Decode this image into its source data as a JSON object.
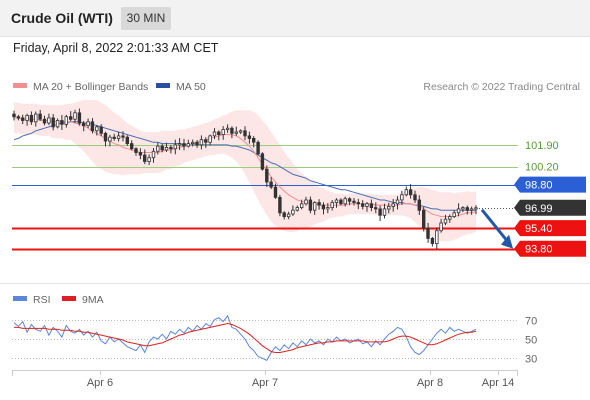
{
  "header": {
    "title": "Crude Oil (WTI)",
    "timeframe": "30 MIN"
  },
  "datetime": "Friday, April 8, 2022 2:01:33 AM CET",
  "legend": {
    "bollinger": "MA 20 + Bollinger Bands",
    "ma50": "MA 50",
    "copyright": "Research © 2022 Trading Central",
    "rsi": "RSI",
    "ma9": "9MA"
  },
  "colors": {
    "candle": "#333333",
    "bollinger_band": "#fde3e3",
    "ma20": "#f19090",
    "ma50": "#4a6cb3",
    "resistance": "#9ccc7c",
    "pivot": "#2a5fd6",
    "support": "#ee1111",
    "current_price": "#333333",
    "arrow": "#2357a8",
    "rsi": "#5b86d9",
    "rsi_ma": "#e02020"
  },
  "chart_data": [
    {
      "type": "candlestick",
      "title": "Crude Oil (WTI)",
      "timeframe": "30 MIN",
      "x_labels": [
        "Apr 6",
        "Apr 7",
        "Apr 8",
        "Apr 14"
      ],
      "y_range": [
        91.9,
        105.4
      ],
      "levels": [
        {
          "name": "resistance-2",
          "value": 101.9,
          "label": "101.90",
          "kind": "resistance"
        },
        {
          "name": "resistance-1",
          "value": 100.2,
          "label": "100.20",
          "kind": "resistance"
        },
        {
          "name": "pivot",
          "value": 98.8,
          "label": "98.80",
          "kind": "pivot"
        },
        {
          "name": "current",
          "value": 96.99,
          "label": "96.99",
          "kind": "current"
        },
        {
          "name": "support-1",
          "value": 95.4,
          "label": "95.40",
          "kind": "support"
        },
        {
          "name": "support-2",
          "value": 93.8,
          "label": "93.80",
          "kind": "support"
        }
      ],
      "forecast": {
        "from": 96.99,
        "to": 93.8,
        "direction": "down"
      },
      "close": [
        104.1,
        104.0,
        103.8,
        104.2,
        103.7,
        104.3,
        103.9,
        103.6,
        104.0,
        103.3,
        103.8,
        103.5,
        104.1,
        103.9,
        104.4,
        103.6,
        103.4,
        103.7,
        103.0,
        103.3,
        102.8,
        102.2,
        102.5,
        102.4,
        102.6,
        102.5,
        102.0,
        101.6,
        101.3,
        101.1,
        100.6,
        100.9,
        101.4,
        101.8,
        101.5,
        101.7,
        101.6,
        101.9,
        102.0,
        101.8,
        102.0,
        102.1,
        101.9,
        102.3,
        102.1,
        102.6,
        102.9,
        102.7,
        103.1,
        103.2,
        102.8,
        102.9,
        103.0,
        102.6,
        102.4,
        102.1,
        101.2,
        100.0,
        99.0,
        98.6,
        97.8,
        96.6,
        96.3,
        96.5,
        96.8,
        97.0,
        97.3,
        97.6,
        96.8,
        97.4,
        97.2,
        96.9,
        97.0,
        97.4,
        97.6,
        97.3,
        97.7,
        97.5,
        97.4,
        97.3,
        97.1,
        97.3,
        97.0,
        96.9,
        96.4,
        96.9,
        97.1,
        97.3,
        97.6,
        98.0,
        98.4,
        98.0,
        97.6,
        96.8,
        95.4,
        94.6,
        94.2,
        95.2,
        95.8,
        96.1,
        96.3,
        96.6,
        96.9,
        97.0,
        96.8,
        96.9,
        96.99
      ],
      "ma20": [
        104.0,
        104.0,
        103.9,
        103.9,
        103.9,
        103.9,
        103.8,
        103.8,
        103.8,
        103.7,
        103.7,
        103.7,
        103.7,
        103.7,
        103.6,
        103.5,
        103.4,
        103.2,
        103.0,
        102.8,
        102.6,
        102.4,
        102.2,
        102.0,
        101.9,
        101.7,
        101.6,
        101.5,
        101.4,
        101.3,
        101.3,
        101.3,
        101.3,
        101.3,
        101.4,
        101.5,
        101.5,
        101.6,
        101.7,
        101.8,
        101.9,
        102.0,
        102.1,
        102.2,
        102.3,
        102.4,
        102.5,
        102.6,
        102.7,
        102.7,
        102.7,
        102.6,
        102.4,
        102.1,
        101.8,
        101.4,
        100.9,
        100.4,
        99.9,
        99.4,
        99.0,
        98.6,
        98.3,
        98.0,
        97.8,
        97.6,
        97.5,
        97.4,
        97.3,
        97.3,
        97.2,
        97.2,
        97.2,
        97.2,
        97.2,
        97.2,
        97.2,
        97.3,
        97.3,
        97.3,
        97.3,
        97.3,
        97.3,
        97.2,
        97.2,
        97.2,
        97.2,
        97.2,
        97.2,
        97.3,
        97.3,
        97.3,
        97.2,
        97.1,
        96.9,
        96.7,
        96.5,
        96.4,
        96.3,
        96.3,
        96.3,
        96.3,
        96.4,
        96.5,
        96.6,
        96.6,
        96.7
      ],
      "ma50": [
        102.3,
        102.4,
        102.6,
        102.7,
        102.8,
        103.0,
        103.1,
        103.2,
        103.3,
        103.4,
        103.5,
        103.6,
        103.6,
        103.7,
        103.7,
        103.7,
        103.6,
        103.6,
        103.5,
        103.4,
        103.3,
        103.2,
        103.1,
        103.0,
        102.9,
        102.8,
        102.7,
        102.6,
        102.5,
        102.4,
        102.3,
        102.2,
        102.1,
        102.1,
        102.0,
        102.0,
        102.0,
        102.0,
        102.0,
        101.9,
        101.9,
        101.9,
        101.9,
        101.9,
        101.9,
        101.9,
        101.9,
        101.9,
        101.9,
        101.9,
        101.8,
        101.8,
        101.7,
        101.6,
        101.5,
        101.3,
        101.1,
        100.9,
        100.7,
        100.5,
        100.4,
        100.2,
        100.0,
        99.8,
        99.6,
        99.5,
        99.4,
        99.3,
        99.1,
        99.0,
        98.9,
        98.8,
        98.7,
        98.6,
        98.5,
        98.4,
        98.4,
        98.3,
        98.2,
        98.1,
        98.0,
        97.9,
        97.8,
        97.7,
        97.6,
        97.6,
        97.5,
        97.4,
        97.4,
        97.4,
        97.3,
        97.3,
        97.2,
        97.2,
        97.1,
        97.0,
        96.9,
        96.9,
        96.8,
        96.8,
        96.8,
        96.8,
        96.8,
        96.8,
        96.8,
        96.8,
        96.8
      ],
      "band_width": [
        1.2,
        1.2,
        1.2,
        1.2,
        1.2,
        1.2,
        1.2,
        1.2,
        1.2,
        1.3,
        1.3,
        1.3,
        1.4,
        1.4,
        1.6,
        1.8,
        2.0,
        2.2,
        2.4,
        2.6,
        2.6,
        2.6,
        2.5,
        2.4,
        2.3,
        2.2,
        2.0,
        1.9,
        1.8,
        1.7,
        1.6,
        1.6,
        1.6,
        1.6,
        1.6,
        1.5,
        1.5,
        1.4,
        1.4,
        1.3,
        1.3,
        1.3,
        1.3,
        1.3,
        1.3,
        1.3,
        1.4,
        1.4,
        1.5,
        1.6,
        1.8,
        2.0,
        2.2,
        2.5,
        2.8,
        3.1,
        3.3,
        3.4,
        3.5,
        3.5,
        3.4,
        3.3,
        3.1,
        2.9,
        2.7,
        2.4,
        2.2,
        2.0,
        1.8,
        1.6,
        1.4,
        1.3,
        1.1,
        1.0,
        0.9,
        0.9,
        0.8,
        0.8,
        0.8,
        0.8,
        0.8,
        0.8,
        0.8,
        0.8,
        0.8,
        0.8,
        0.8,
        0.8,
        0.8,
        0.9,
        1.0,
        1.1,
        1.3,
        1.5,
        1.7,
        1.8,
        1.9,
        1.9,
        1.9,
        1.9,
        1.9,
        1.8,
        1.8,
        1.7,
        1.7,
        1.6,
        1.6
      ]
    },
    {
      "type": "line",
      "name": "RSI",
      "y_range": [
        20,
        80
      ],
      "y_ticks": [
        70,
        50,
        30
      ],
      "series": [
        {
          "name": "RSI",
          "values": [
            67,
            63,
            68,
            57,
            65,
            60,
            58,
            64,
            54,
            62,
            58,
            52,
            64,
            58,
            56,
            60,
            54,
            58,
            52,
            57,
            48,
            45,
            52,
            47,
            50,
            46,
            42,
            40,
            38,
            44,
            36,
            47,
            52,
            50,
            55,
            50,
            58,
            55,
            60,
            56,
            62,
            58,
            64,
            60,
            66,
            63,
            70,
            72,
            68,
            74,
            62,
            60,
            55,
            50,
            42,
            38,
            32,
            30,
            28,
            36,
            42,
            38,
            44,
            40,
            46,
            42,
            48,
            44,
            50,
            46,
            48,
            44,
            50,
            47,
            52,
            48,
            50,
            46,
            48,
            50,
            45,
            47,
            42,
            48,
            44,
            50,
            55,
            58,
            62,
            60,
            52,
            42,
            36,
            34,
            38,
            44,
            50,
            56,
            60,
            56,
            62,
            58,
            60,
            58,
            56,
            58,
            60
          ]
        },
        {
          "name": "9MA",
          "values": [
            62,
            62,
            61,
            61,
            61,
            61,
            61,
            61,
            60,
            60,
            60,
            59,
            59,
            59,
            58,
            58,
            57,
            57,
            56,
            55,
            54,
            53,
            52,
            51,
            50,
            49,
            47,
            46,
            45,
            44,
            43,
            43,
            44,
            45,
            46,
            48,
            50,
            52,
            54,
            55,
            57,
            58,
            59,
            60,
            61,
            62,
            63,
            64,
            65,
            66,
            65,
            63,
            61,
            58,
            55,
            51,
            47,
            43,
            40,
            37,
            36,
            36,
            37,
            38,
            39,
            41,
            42,
            43,
            44,
            45,
            46,
            46,
            47,
            47,
            48,
            48,
            48,
            48,
            48,
            48,
            48,
            47,
            47,
            47,
            47,
            47,
            48,
            50,
            52,
            53,
            53,
            52,
            50,
            48,
            46,
            44,
            44,
            45,
            47,
            49,
            51,
            53,
            55,
            56,
            57,
            57,
            58
          ]
        }
      ]
    }
  ]
}
